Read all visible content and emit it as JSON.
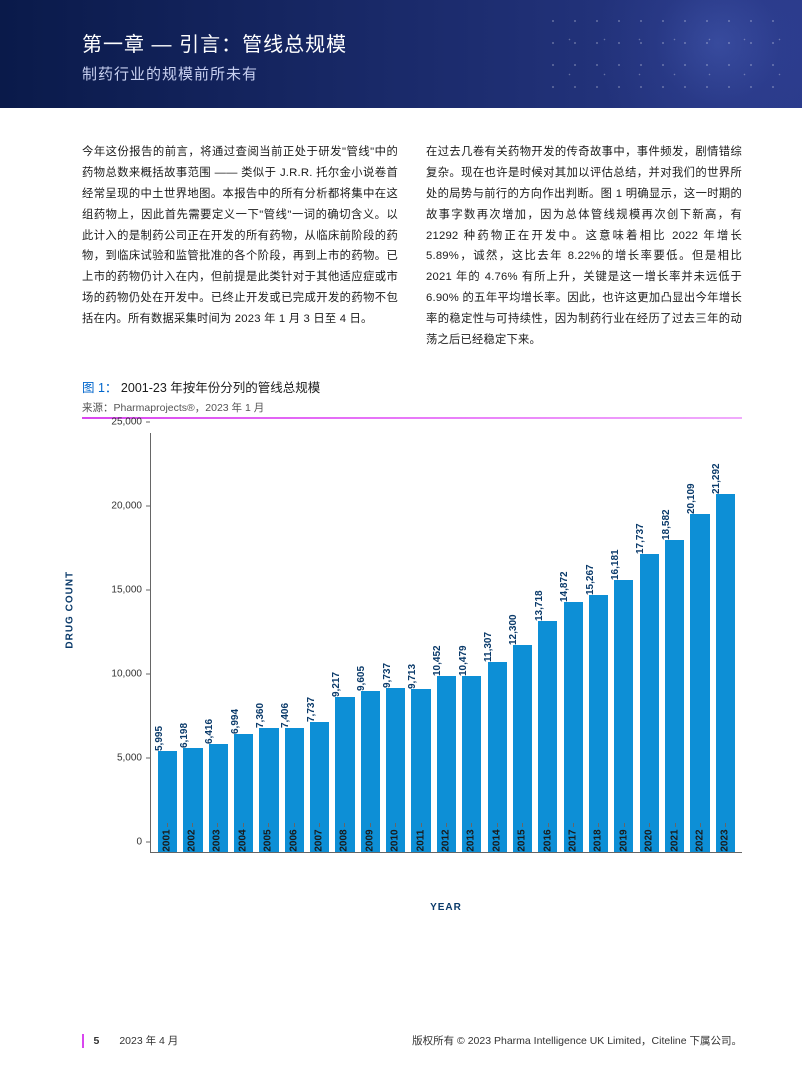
{
  "header": {
    "chapter_title": "第一章 — 引言：管线总规模",
    "subtitle": "制药行业的规模前所未有"
  },
  "body": {
    "col1": "今年这份报告的前言，将通过查阅当前正处于研发\"管线\"中的药物总数来概括故事范围 —— 类似于  J.R.R. 托尔金小说卷首经常呈现的中土世界地图。本报告中的所有分析都将集中在这组药物上，因此首先需要定义一下\"管线\"一词的确切含义。以此计入的是制药公司正在开发的所有药物，从临床前阶段的药物，到临床试验和监管批准的各个阶段，再到上市的药物。已上市的药物仍计入在内，但前提是此类针对于其他适应症或市场的药物仍处在开发中。已终止开发或已完成开发的药物不包括在内。所有数据采集时间为 2023 年 1 月 3 日至 4 日。",
    "col2": "在过去几卷有关药物开发的传奇故事中，事件频发，剧情错综复杂。现在也许是时候对其加以评估总结，并对我们的世界所处的局势与前行的方向作出判断。图 1 明确显示，这一时期的故事字数再次增加，因为总体管线规模再次创下新高，有 21292 种药物正在开发中。这意味着相比 2022 年增长 5.89%，诚然，这比去年  8.22%的增长率要低。但是相比 2021 年的 4.76% 有所上升，关键是这一增长率并未远低于 6.90% 的五年平均增长率。因此，也许这更加凸显出今年增长率的稳定性与可持续性，因为制药行业在经历了过去三年的动荡之后已经稳定下来。"
  },
  "figure": {
    "label": "图 1：",
    "title": "2001-23 年按年份分列的管线总规模",
    "source": "来源：Pharmaprojects®，2023 年 1 月"
  },
  "chart": {
    "type": "bar",
    "years": [
      "2001",
      "2002",
      "2003",
      "2004",
      "2005",
      "2006",
      "2007",
      "2008",
      "2009",
      "2010",
      "2011",
      "2012",
      "2013",
      "2014",
      "2015",
      "2016",
      "2017",
      "2018",
      "2019",
      "2020",
      "2021",
      "2022",
      "2023"
    ],
    "values": [
      5995,
      6198,
      6416,
      6994,
      7360,
      7406,
      7737,
      9217,
      9605,
      9737,
      9713,
      10452,
      10479,
      11307,
      12300,
      13718,
      14872,
      15267,
      16181,
      17737,
      18582,
      20109,
      21292
    ],
    "value_labels": [
      "5,995",
      "6,198",
      "6,416",
      "6,994",
      "7,360",
      "7,406",
      "7,737",
      "9,217",
      "9,605",
      "9,737",
      "9,713",
      "10,452",
      "10,479",
      "11,307",
      "12,300",
      "13,718",
      "14,872",
      "15,267",
      "16,181",
      "17,737",
      "18,582",
      "20,109",
      "21,292"
    ],
    "bar_color": "#0d8fd6",
    "value_label_color": "#0a3a6a",
    "ylabel": "DRUG COUNT",
    "xlabel": "YEAR",
    "ylim": [
      0,
      25000
    ],
    "yticks": [
      0,
      5000,
      10000,
      15000,
      20000,
      25000
    ],
    "ytick_labels": [
      "0",
      "5,000",
      "10,000",
      "15,000",
      "20,000",
      "25,000"
    ],
    "axis_color": "#666666",
    "tick_font_color": "#1a1a1a",
    "label_color": "#0a3a6a",
    "background_color": "#ffffff",
    "bar_width_ratio": 0.76
  },
  "footer": {
    "page": "5",
    "date": "2023 年 4 月",
    "copyright": "版权所有 © 2023 Pharma Intelligence UK Limited，Citeline 下属公司。"
  }
}
